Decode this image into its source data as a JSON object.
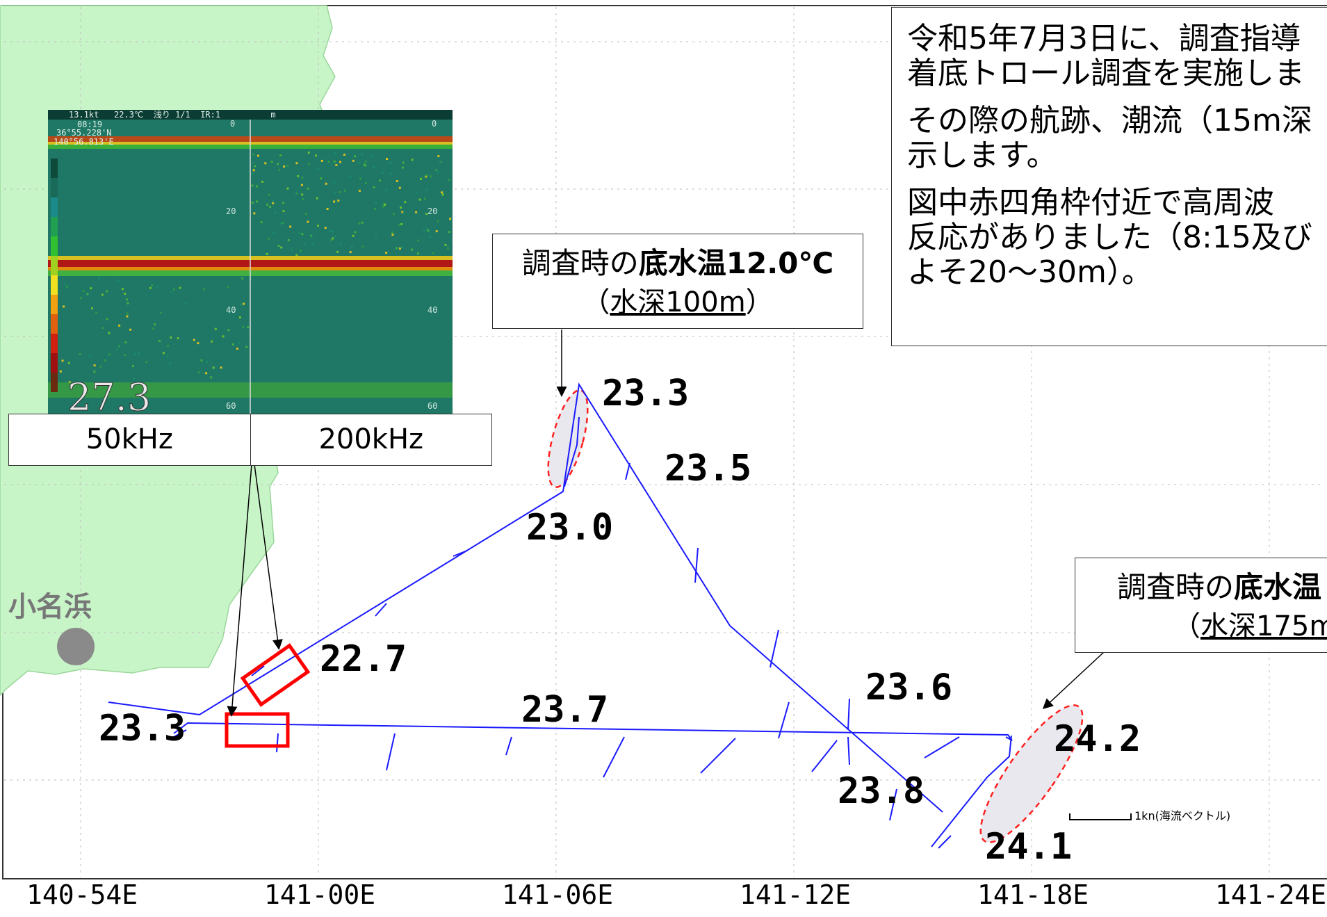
{
  "info_text": [
    "令和5年7月3日に、調査指導",
    "着底トロール調査を実施しま",
    "その際の航跡、潮流（15m深",
    "示します。",
    "図中赤四角枠付近で高周波",
    "反応がありました（8:15及び",
    "よそ20〜30m）。"
  ],
  "callout_north": {
    "line1_prefix": "調査時の",
    "line1_bold": "底水温12.0℃",
    "line2_open": "（",
    "line2_underlined": "水深100m",
    "line2_close": "）"
  },
  "callout_southeast": {
    "line1_prefix": "調査時の",
    "line1_bold": "底水温",
    "line2_open": "（",
    "line2_underlined": "水深175m",
    "line2_close": ""
  },
  "sonar": {
    "header": "13.1kt   22.3℃  浅り 1/1  IR:1          m",
    "time": "08:19",
    "lat": "36°55.228'N",
    "lon": "140°56.813'E",
    "depth_ticks": [
      "0",
      "20",
      "40",
      "60"
    ],
    "surface_temp": "27.3",
    "freq_left": "50kHz",
    "freq_right": "200kHz"
  },
  "place_name": "小名浜",
  "temperatures": [
    {
      "id": "t-23-3-n",
      "value": "23.3"
    },
    {
      "id": "t-23-5",
      "value": "23.5"
    },
    {
      "id": "t-23-0",
      "value": "23.0"
    },
    {
      "id": "t-22-7",
      "value": "22.7"
    },
    {
      "id": "t-23-3-w",
      "value": "23.3"
    },
    {
      "id": "t-23-7",
      "value": "23.7"
    },
    {
      "id": "t-23-6",
      "value": "23.6"
    },
    {
      "id": "t-23-8",
      "value": "23.8"
    },
    {
      "id": "t-24-2",
      "value": "24.2"
    },
    {
      "id": "t-24-1",
      "value": "24.1"
    }
  ],
  "longitude_ticks": [
    "140-54E",
    "141-00E",
    "141-06E",
    "141-12E",
    "141-18E",
    "141-24E"
  ],
  "scale_label": "1kn(海流ベクトル)",
  "colors": {
    "land": "#c8f5c8",
    "track": "#1a1aff",
    "highlight": "#ff0000",
    "ellipse_fill": "#e8e8ee",
    "sonar_bg": "#1f7765"
  }
}
